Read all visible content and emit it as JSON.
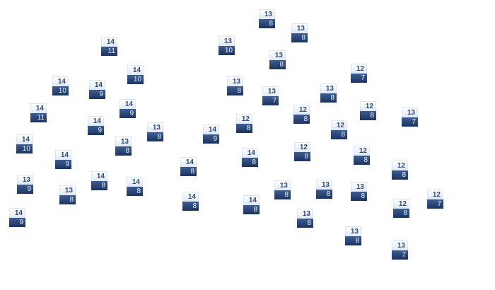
{
  "nodes": [
    {
      "top": "14",
      "bottom": "11"
    },
    {
      "top": "14",
      "bottom": "10"
    },
    {
      "top": "14",
      "bottom": "10"
    },
    {
      "top": "14",
      "bottom": "9"
    },
    {
      "top": "14",
      "bottom": "11"
    },
    {
      "top": "14",
      "bottom": "9"
    },
    {
      "top": "14",
      "bottom": "9"
    },
    {
      "top": "13",
      "bottom": "8"
    },
    {
      "top": "14",
      "bottom": "10"
    },
    {
      "top": "13",
      "bottom": "8"
    },
    {
      "top": "14",
      "bottom": "9"
    },
    {
      "top": "13",
      "bottom": "9"
    },
    {
      "top": "14",
      "bottom": "8"
    },
    {
      "top": "14",
      "bottom": "8"
    },
    {
      "top": "13",
      "bottom": "8"
    },
    {
      "top": "14",
      "bottom": "9"
    },
    {
      "top": "13",
      "bottom": "8"
    },
    {
      "top": "13",
      "bottom": "8"
    },
    {
      "top": "13",
      "bottom": "10"
    },
    {
      "top": "13",
      "bottom": "8"
    },
    {
      "top": "13",
      "bottom": "8"
    },
    {
      "top": "13",
      "bottom": "7"
    },
    {
      "top": "13",
      "bottom": "8"
    },
    {
      "top": "12",
      "bottom": "8"
    },
    {
      "top": "12",
      "bottom": "8"
    },
    {
      "top": "14",
      "bottom": "9"
    },
    {
      "top": "14",
      "bottom": "8"
    },
    {
      "top": "12",
      "bottom": "8"
    },
    {
      "top": "14",
      "bottom": "8"
    },
    {
      "top": "13",
      "bottom": "8"
    },
    {
      "top": "13",
      "bottom": "8"
    },
    {
      "top": "14",
      "bottom": "8"
    },
    {
      "top": "14",
      "bottom": "8"
    },
    {
      "top": "13",
      "bottom": "8"
    },
    {
      "top": "12",
      "bottom": "7"
    },
    {
      "top": "12",
      "bottom": "8"
    },
    {
      "top": "13",
      "bottom": "7"
    },
    {
      "top": "12",
      "bottom": "8"
    },
    {
      "top": "12",
      "bottom": "8"
    },
    {
      "top": "12",
      "bottom": "8"
    },
    {
      "top": "13",
      "bottom": "8"
    },
    {
      "top": "12",
      "bottom": "7"
    },
    {
      "top": "12",
      "bottom": "8"
    },
    {
      "top": "13",
      "bottom": "8"
    },
    {
      "top": "13",
      "bottom": "7"
    }
  ],
  "colors": {
    "header_text": "#2d4a7d",
    "body_fill": "#1b3361",
    "body_text": "#e8eef8"
  }
}
